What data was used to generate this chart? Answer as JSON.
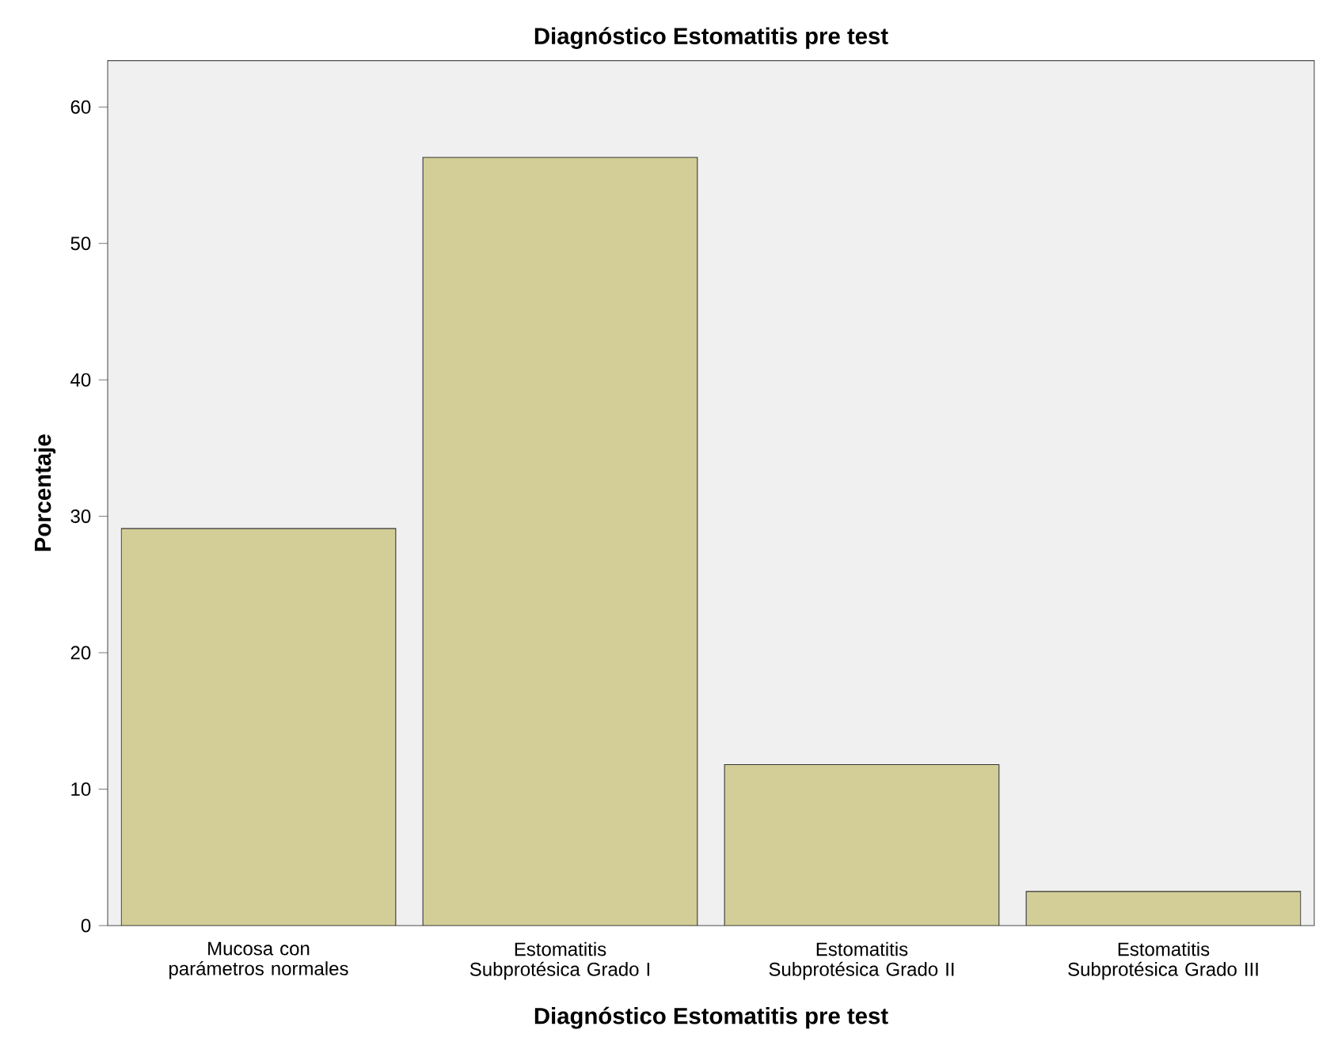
{
  "chart_data": {
    "type": "bar",
    "title": "Diagnóstico Estomatitis pre test",
    "xlabel": "Diagnóstico Estomatitis pre test",
    "ylabel": "Porcentaje",
    "categories": [
      "Mucosa con parámetros normales",
      "Estomatitis Subprotésica Grado I",
      "Estomatitis Subprotésica Grado II",
      "Estomatitis Subprotésica Grado III"
    ],
    "values": [
      29.1,
      56.3,
      11.8,
      2.5
    ],
    "color": "#d3ce97",
    "ylim": [
      0,
      63.4
    ],
    "yticks": [
      0,
      10,
      20,
      30,
      40,
      50,
      60
    ],
    "grid": false
  }
}
